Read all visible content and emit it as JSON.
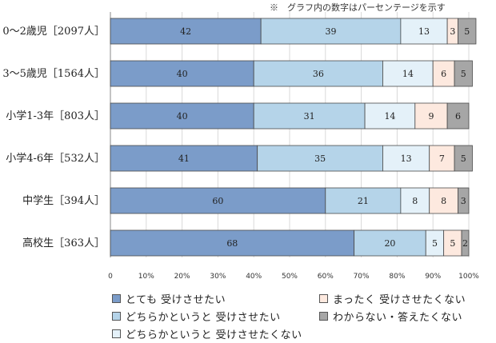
{
  "note": "※　グラフ内の数字はパーセンテージを示す",
  "chart_data": {
    "type": "bar",
    "orientation": "horizontal",
    "stacked": true,
    "categories": [
      "0～2歳児［2097人］",
      "3～5歳児［1564人］",
      "小学1-3年［803人］",
      "小学4-6年［532人］",
      "中学生［394人］",
      "高校生［363人］"
    ],
    "series": [
      {
        "name": "とても 受けさせたい",
        "color": "#7b9cc9",
        "values": [
          42,
          40,
          40,
          41,
          60,
          68
        ]
      },
      {
        "name": "どちらかというと 受けさせたい",
        "color": "#b5d4e9",
        "values": [
          39,
          36,
          31,
          35,
          21,
          20
        ]
      },
      {
        "name": "どちらかというと 受けさせたくない",
        "color": "#e4f1f9",
        "values": [
          13,
          14,
          14,
          13,
          8,
          5
        ]
      },
      {
        "name": "まったく 受けさせたくない",
        "color": "#fde9df",
        "values": [
          3,
          6,
          9,
          7,
          8,
          5
        ]
      },
      {
        "name": "わからない・答えたくない",
        "color": "#a6a6a6",
        "values": [
          5,
          5,
          6,
          5,
          3,
          2
        ]
      }
    ],
    "xlim": [
      0,
      100
    ],
    "xticks": [
      "0",
      "10%",
      "20%",
      "30%",
      "40%",
      "50%",
      "60%",
      "70%",
      "80%",
      "90%",
      "100%"
    ],
    "legend_position": "bottom"
  }
}
